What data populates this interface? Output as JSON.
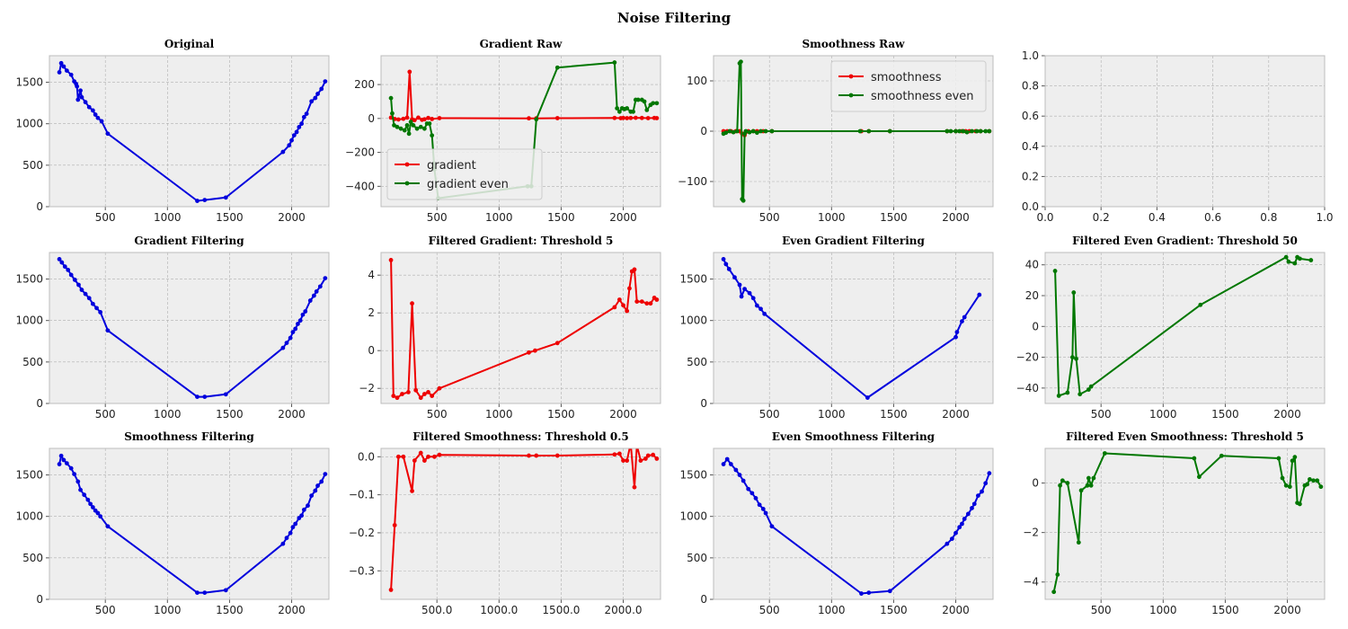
{
  "figure": {
    "title": "Noise Filtering"
  },
  "colors": {
    "blue": "#0000dd",
    "red": "#ee0000",
    "green": "#007700",
    "panel_bg": "#eeeeee",
    "grid": "#b0b0b0",
    "frame": "#bcbcbc"
  },
  "chart_data": [
    {
      "type": "line",
      "title": "Original",
      "xlim": [
        50,
        2300
      ],
      "ylim": [
        0,
        1820
      ],
      "xticks": [
        500,
        1000,
        1500,
        2000
      ],
      "yticks": [
        0,
        500,
        1000,
        1500
      ],
      "series": [
        {
          "color": "blue",
          "x": [
            130,
            145,
            165,
            190,
            225,
            250,
            265,
            272,
            280,
            300,
            310,
            340,
            370,
            400,
            420,
            440,
            470,
            520,
            1240,
            1300,
            1470,
            1930,
            1980,
            2000,
            2020,
            2040,
            2060,
            2080,
            2100,
            2120,
            2160,
            2190,
            2210,
            2240,
            2270
          ],
          "y": [
            1620,
            1730,
            1690,
            1640,
            1590,
            1510,
            1480,
            1450,
            1290,
            1400,
            1320,
            1260,
            1200,
            1160,
            1110,
            1070,
            1030,
            880,
            70,
            80,
            110,
            660,
            740,
            800,
            860,
            900,
            960,
            1000,
            1080,
            1120,
            1270,
            1310,
            1360,
            1420,
            1510
          ]
        }
      ]
    },
    {
      "type": "line",
      "title": "Gradient Raw",
      "xlim": [
        50,
        2300
      ],
      "ylim": [
        -520,
        370
      ],
      "xticks": [
        500,
        1000,
        1500,
        2000
      ],
      "yticks": [
        -400,
        -200,
        0,
        200
      ],
      "legend": {
        "loc": "lower-left",
        "entries": [
          {
            "name": "gradient",
            "color": "red"
          },
          {
            "name": "gradient even",
            "color": "green"
          }
        ]
      },
      "series": [
        {
          "name": "gradient",
          "color": "red",
          "x": [
            130,
            160,
            190,
            230,
            260,
            280,
            300,
            320,
            350,
            380,
            400,
            430,
            460,
            520,
            1240,
            1300,
            1470,
            1930,
            1980,
            2000,
            2030,
            2060,
            2100,
            2150,
            2200,
            2250,
            2270
          ],
          "y": [
            5,
            -3,
            -6,
            -2,
            5,
            275,
            -5,
            -10,
            5,
            -8,
            -5,
            3,
            -3,
            2,
            1,
            1,
            2,
            3,
            2,
            3,
            2,
            3,
            4,
            3,
            2,
            3,
            2
          ]
        },
        {
          "name": "gradient even",
          "color": "green",
          "x": [
            130,
            140,
            155,
            180,
            210,
            240,
            260,
            275,
            290,
            310,
            340,
            370,
            400,
            420,
            440,
            460,
            480,
            510,
            1230,
            1260,
            1300,
            1470,
            1930,
            1950,
            1970,
            1990,
            2010,
            2030,
            2060,
            2080,
            2100,
            2120,
            2150,
            2170,
            2190,
            2220,
            2240,
            2270
          ],
          "y": [
            120,
            30,
            -40,
            -50,
            -60,
            -70,
            -40,
            -90,
            -20,
            -40,
            -60,
            -50,
            -60,
            -30,
            -30,
            -100,
            -300,
            -470,
            -400,
            -400,
            -5,
            300,
            330,
            60,
            40,
            60,
            55,
            60,
            40,
            40,
            110,
            110,
            110,
            100,
            50,
            80,
            90,
            90
          ]
        }
      ]
    },
    {
      "type": "line",
      "title": "Smoothness Raw",
      "xlim": [
        50,
        2300
      ],
      "ylim": [
        -150,
        150
      ],
      "xticks": [
        500,
        1000,
        1500,
        2000
      ],
      "yticks": [
        -100,
        0,
        100
      ],
      "legend": {
        "loc": "upper-right",
        "entries": [
          {
            "name": "smoothness",
            "color": "red"
          },
          {
            "name": "smoothness even",
            "color": "green"
          }
        ]
      },
      "series": [
        {
          "name": "smoothness",
          "color": "red",
          "x": [
            130,
            160,
            190,
            230,
            260,
            280,
            300,
            330,
            370,
            400,
            450,
            520,
            1240,
            1300,
            1470,
            1930,
            2000,
            2050,
            2080,
            2110,
            2160,
            2200,
            2270
          ],
          "y": [
            0,
            0,
            0,
            0,
            0,
            -5,
            -8,
            0,
            0,
            0,
            0,
            0,
            0,
            0,
            0,
            0,
            0,
            0,
            0,
            0,
            0,
            0,
            0
          ]
        },
        {
          "name": "smoothness even",
          "color": "green",
          "x": [
            130,
            150,
            180,
            210,
            240,
            260,
            270,
            280,
            290,
            300,
            310,
            340,
            370,
            400,
            430,
            470,
            520,
            1230,
            1300,
            1470,
            1930,
            1960,
            2000,
            2030,
            2060,
            2090,
            2130,
            2170,
            2200,
            2240,
            2270
          ],
          "y": [
            -5,
            -3,
            0,
            -2,
            0,
            135,
            138,
            -135,
            -138,
            -5,
            0,
            -2,
            0,
            -3,
            0,
            0,
            0,
            0,
            0,
            0,
            0,
            0,
            0,
            0,
            0,
            -2,
            0,
            0,
            0,
            0,
            0
          ]
        }
      ]
    },
    {
      "type": "line",
      "title": "",
      "xlim": [
        0,
        1
      ],
      "ylim": [
        0,
        1
      ],
      "xticks": [
        0.0,
        0.2,
        0.4,
        0.6,
        0.8,
        1.0
      ],
      "yticks": [
        0.0,
        0.2,
        0.4,
        0.6,
        0.8,
        1.0
      ],
      "tick_decimals": 1,
      "series": []
    },
    {
      "type": "line",
      "title": "Gradient Filtering",
      "xlim": [
        50,
        2300
      ],
      "ylim": [
        0,
        1820
      ],
      "xticks": [
        500,
        1000,
        1500,
        2000
      ],
      "yticks": [
        0,
        500,
        1000,
        1500
      ],
      "series": [
        {
          "color": "blue",
          "x": [
            130,
            150,
            175,
            200,
            225,
            255,
            285,
            310,
            340,
            370,
            400,
            430,
            460,
            520,
            1240,
            1300,
            1470,
            1930,
            1960,
            1990,
            2010,
            2030,
            2050,
            2070,
            2090,
            2110,
            2150,
            2180,
            2200,
            2230,
            2270
          ],
          "y": [
            1740,
            1700,
            1650,
            1610,
            1550,
            1490,
            1430,
            1370,
            1320,
            1270,
            1200,
            1150,
            1100,
            880,
            80,
            80,
            110,
            670,
            730,
            790,
            860,
            900,
            960,
            1000,
            1070,
            1110,
            1240,
            1300,
            1350,
            1410,
            1510
          ]
        }
      ]
    },
    {
      "type": "line",
      "title": "Filtered Gradient: Threshold 5",
      "xlim": [
        50,
        2300
      ],
      "ylim": [
        -2.8,
        5.2
      ],
      "xticks": [
        500,
        1000,
        1500,
        2000
      ],
      "yticks": [
        -2,
        0,
        2,
        4
      ],
      "series": [
        {
          "color": "red",
          "x": [
            130,
            150,
            180,
            220,
            270,
            300,
            330,
            370,
            400,
            430,
            460,
            520,
            1240,
            1290,
            1470,
            1930,
            1970,
            2000,
            2030,
            2050,
            2070,
            2090,
            2110,
            2150,
            2190,
            2220,
            2250,
            2270
          ],
          "y": [
            4.8,
            -2.4,
            -2.5,
            -2.3,
            -2.2,
            2.5,
            -2.1,
            -2.5,
            -2.3,
            -2.2,
            -2.4,
            -2.0,
            -0.1,
            0.0,
            0.4,
            2.3,
            2.7,
            2.4,
            2.1,
            3.3,
            4.2,
            4.3,
            2.6,
            2.6,
            2.5,
            2.5,
            2.8,
            2.7
          ]
        }
      ]
    },
    {
      "type": "line",
      "title": "Even Gradient Filtering",
      "xlim": [
        50,
        2300
      ],
      "ylim": [
        0,
        1820
      ],
      "xticks": [
        500,
        1000,
        1500,
        2000
      ],
      "yticks": [
        0,
        500,
        1000,
        1500
      ],
      "series": [
        {
          "color": "blue",
          "x": [
            130,
            150,
            175,
            220,
            260,
            275,
            300,
            340,
            370,
            400,
            430,
            460,
            1290,
            2000,
            2010,
            2050,
            2070,
            2190
          ],
          "y": [
            1740,
            1680,
            1620,
            1520,
            1430,
            1290,
            1380,
            1330,
            1270,
            1180,
            1140,
            1080,
            70,
            800,
            860,
            990,
            1040,
            1310
          ]
        }
      ]
    },
    {
      "type": "line",
      "title": "Filtered Even Gradient: Threshold 50",
      "xlim": [
        50,
        2300
      ],
      "ylim": [
        -50,
        48
      ],
      "xticks": [
        500,
        1000,
        1500,
        2000
      ],
      "yticks": [
        -40,
        -20,
        0,
        20,
        40
      ],
      "series": [
        {
          "color": "green",
          "x": [
            130,
            160,
            230,
            270,
            280,
            300,
            330,
            400,
            420,
            1300,
            1990,
            2010,
            2060,
            2080,
            2100,
            2190
          ],
          "y": [
            36,
            -45,
            -43,
            -20,
            22,
            -21,
            -44,
            -41,
            -39,
            14,
            45,
            42,
            41,
            45,
            44,
            43
          ]
        }
      ]
    },
    {
      "type": "line",
      "title": "Smoothness Filtering",
      "xlim": [
        50,
        2300
      ],
      "ylim": [
        0,
        1820
      ],
      "xticks": [
        500,
        1000,
        1500,
        2000
      ],
      "yticks": [
        0,
        500,
        1000,
        1500
      ],
      "series": [
        {
          "color": "blue",
          "x": [
            130,
            145,
            165,
            190,
            225,
            250,
            280,
            300,
            330,
            360,
            380,
            400,
            420,
            440,
            460,
            520,
            1240,
            1300,
            1470,
            1930,
            1960,
            1990,
            2010,
            2030,
            2060,
            2080,
            2100,
            2130,
            2160,
            2190,
            2210,
            2240,
            2270
          ],
          "y": [
            1630,
            1730,
            1680,
            1640,
            1580,
            1510,
            1420,
            1320,
            1260,
            1200,
            1150,
            1110,
            1070,
            1040,
            1000,
            880,
            80,
            80,
            110,
            670,
            740,
            800,
            870,
            910,
            980,
            1010,
            1080,
            1130,
            1250,
            1310,
            1370,
            1420,
            1510
          ]
        }
      ]
    },
    {
      "type": "line",
      "title": "Filtered Smoothness: Threshold 0.5",
      "xlim": [
        50,
        2300
      ],
      "ylim": [
        -0.375,
        0.022
      ],
      "xticks": [
        500,
        1000,
        1500,
        2000
      ],
      "yticks": [
        -0.3,
        -0.2,
        -0.1,
        0.0
      ],
      "tick_decimals": 1,
      "series": [
        {
          "color": "red",
          "x": [
            130,
            160,
            190,
            230,
            300,
            320,
            370,
            400,
            430,
            480,
            520,
            1240,
            1300,
            1470,
            1930,
            1970,
            2000,
            2030,
            2060,
            2090,
            2110,
            2140,
            2180,
            2200,
            2240,
            2270
          ],
          "y": [
            -0.35,
            -0.18,
            0.0,
            0.0,
            -0.09,
            -0.01,
            0.01,
            -0.01,
            0.0,
            0.0,
            0.005,
            0.003,
            0.003,
            0.003,
            0.006,
            0.008,
            -0.01,
            -0.01,
            0.035,
            -0.08,
            0.03,
            -0.01,
            -0.005,
            0.003,
            0.005,
            -0.005
          ]
        }
      ]
    },
    {
      "type": "line",
      "title": "Even Smoothness Filtering",
      "xlim": [
        50,
        2300
      ],
      "ylim": [
        0,
        1820
      ],
      "xticks": [
        500,
        1000,
        1500,
        2000
      ],
      "yticks": [
        0,
        500,
        1000,
        1500
      ],
      "series": [
        {
          "color": "blue",
          "x": [
            130,
            160,
            190,
            230,
            260,
            290,
            330,
            360,
            390,
            420,
            450,
            470,
            520,
            1240,
            1300,
            1470,
            1930,
            1970,
            2000,
            2030,
            2050,
            2070,
            2100,
            2130,
            2150,
            2180,
            2210,
            2240,
            2270
          ],
          "y": [
            1630,
            1690,
            1630,
            1560,
            1500,
            1430,
            1330,
            1280,
            1220,
            1140,
            1090,
            1040,
            880,
            70,
            80,
            100,
            670,
            730,
            800,
            870,
            910,
            970,
            1030,
            1100,
            1150,
            1250,
            1300,
            1400,
            1520
          ]
        }
      ]
    },
    {
      "type": "line",
      "title": "Filtered Even Smoothness: Threshold 5",
      "xlim": [
        50,
        2300
      ],
      "ylim": [
        -4.7,
        1.4
      ],
      "xticks": [
        500,
        1000,
        1500,
        2000
      ],
      "yticks": [
        -4,
        -2,
        0
      ],
      "series": [
        {
          "color": "green",
          "x": [
            120,
            150,
            170,
            190,
            230,
            320,
            340,
            390,
            400,
            420,
            440,
            530,
            1250,
            1290,
            1470,
            1930,
            1960,
            1990,
            2020,
            2040,
            2060,
            2080,
            2100,
            2140,
            2160,
            2180,
            2210,
            2240,
            2270
          ],
          "y": [
            -4.4,
            -3.7,
            -0.1,
            0.1,
            0.0,
            -2.4,
            -0.3,
            -0.1,
            0.2,
            -0.1,
            0.2,
            1.2,
            1.0,
            0.25,
            1.1,
            1.0,
            0.2,
            -0.1,
            -0.15,
            0.9,
            1.05,
            -0.8,
            -0.85,
            -0.1,
            -0.05,
            0.15,
            0.1,
            0.1,
            -0.15
          ]
        }
      ]
    }
  ]
}
